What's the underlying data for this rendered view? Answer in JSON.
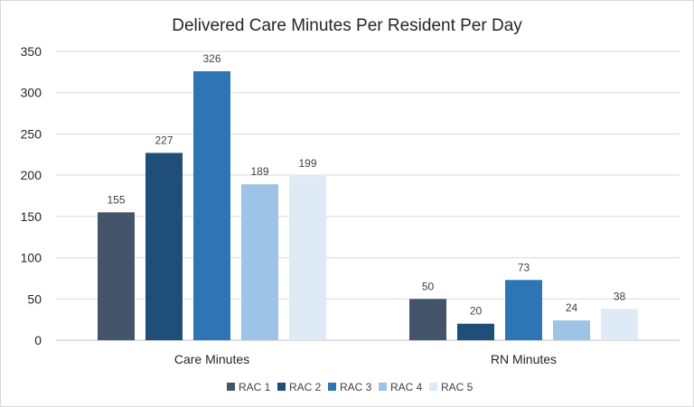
{
  "chart_data": {
    "type": "bar",
    "title": "Delivered Care Minutes Per Resident Per Day",
    "categories": [
      "Care Minutes",
      "RN Minutes"
    ],
    "series": [
      {
        "name": "RAC 1",
        "values": [
          155,
          50
        ],
        "color": "#44546a"
      },
      {
        "name": "RAC 2",
        "values": [
          227,
          20
        ],
        "color": "#1f4e79"
      },
      {
        "name": "RAC 3",
        "values": [
          326,
          73
        ],
        "color": "#2e75b6"
      },
      {
        "name": "RAC 4",
        "values": [
          189,
          24
        ],
        "color": "#9dc3e6"
      },
      {
        "name": "RAC 5",
        "values": [
          199,
          38
        ],
        "color": "#deebf7"
      }
    ],
    "yticks": [
      0,
      50,
      100,
      150,
      200,
      250,
      300,
      350
    ],
    "ylim": [
      0,
      350
    ],
    "grid": true,
    "legend": "bottom",
    "data_labels": true
  }
}
